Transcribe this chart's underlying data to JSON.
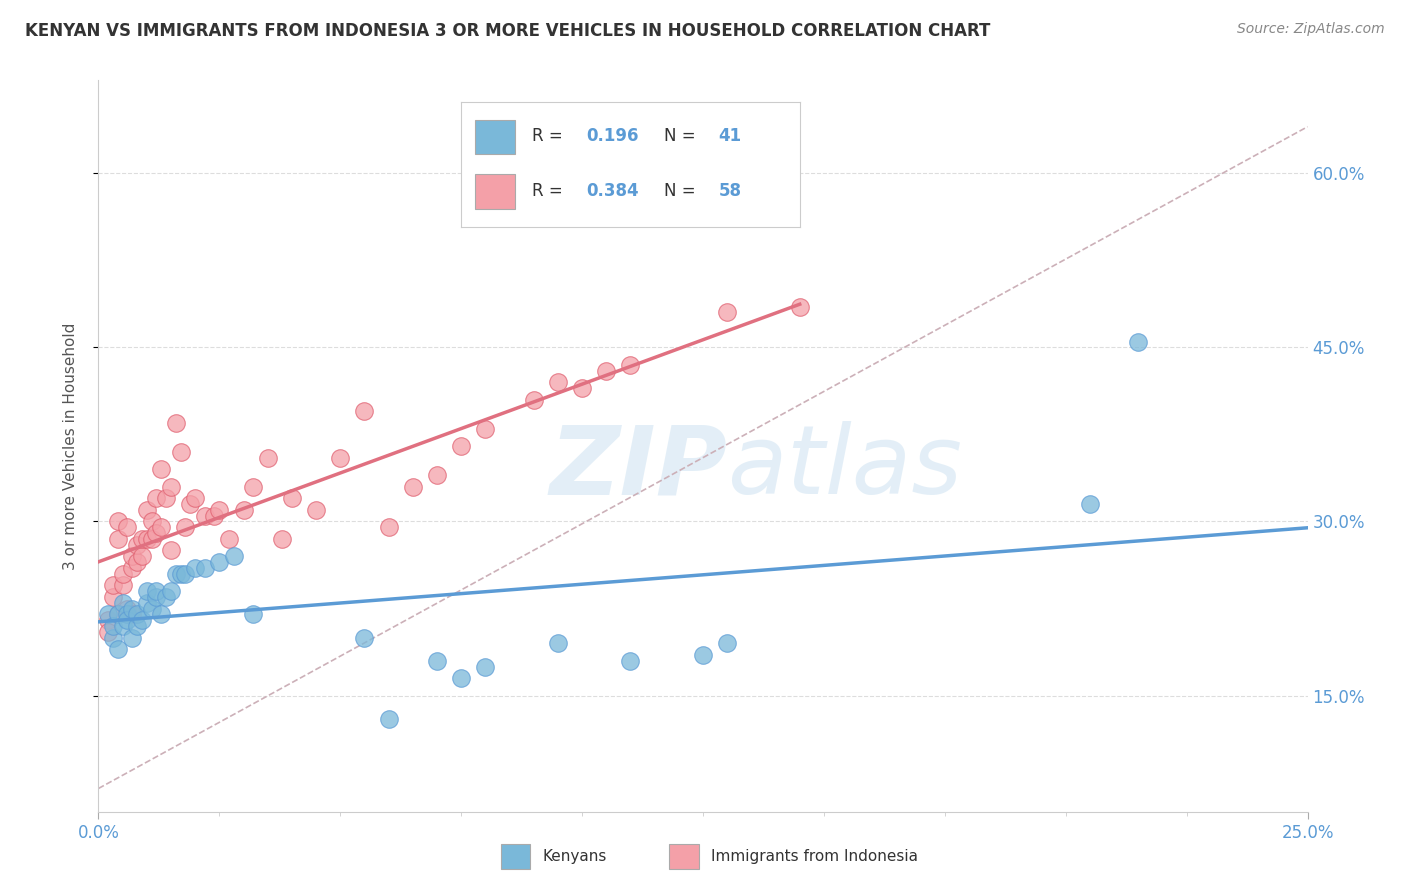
{
  "title": "KENYAN VS IMMIGRANTS FROM INDONESIA 3 OR MORE VEHICLES IN HOUSEHOLD CORRELATION CHART",
  "source": "Source: ZipAtlas.com",
  "ylabel": "3 or more Vehicles in Household",
  "yticks": [
    "15.0%",
    "30.0%",
    "45.0%",
    "60.0%"
  ],
  "ytick_vals": [
    0.15,
    0.3,
    0.45,
    0.6
  ],
  "xlim": [
    0.0,
    0.25
  ],
  "ylim": [
    0.05,
    0.68
  ],
  "kenyan_R": 0.196,
  "kenyan_N": 41,
  "indonesia_R": 0.384,
  "indonesia_N": 58,
  "kenyan_color": "#7ab8d9",
  "kenya_edge": "#5b9bd5",
  "indonesia_color": "#f4a0a8",
  "indonesia_edge": "#e06070",
  "kenyan_scatter_x": [
    0.002,
    0.003,
    0.003,
    0.004,
    0.004,
    0.005,
    0.005,
    0.006,
    0.006,
    0.007,
    0.007,
    0.008,
    0.008,
    0.009,
    0.01,
    0.01,
    0.011,
    0.012,
    0.012,
    0.013,
    0.014,
    0.015,
    0.016,
    0.017,
    0.018,
    0.02,
    0.022,
    0.025,
    0.028,
    0.032,
    0.055,
    0.06,
    0.07,
    0.075,
    0.08,
    0.095,
    0.11,
    0.125,
    0.13,
    0.205,
    0.215
  ],
  "kenyan_scatter_y": [
    0.22,
    0.2,
    0.21,
    0.19,
    0.22,
    0.21,
    0.23,
    0.22,
    0.215,
    0.2,
    0.225,
    0.21,
    0.22,
    0.215,
    0.23,
    0.24,
    0.225,
    0.235,
    0.24,
    0.22,
    0.235,
    0.24,
    0.255,
    0.255,
    0.255,
    0.26,
    0.26,
    0.265,
    0.27,
    0.22,
    0.2,
    0.13,
    0.18,
    0.165,
    0.175,
    0.195,
    0.18,
    0.185,
    0.195,
    0.315,
    0.455
  ],
  "indonesia_scatter_x": [
    0.002,
    0.002,
    0.003,
    0.003,
    0.004,
    0.004,
    0.004,
    0.005,
    0.005,
    0.006,
    0.006,
    0.007,
    0.007,
    0.007,
    0.008,
    0.008,
    0.009,
    0.009,
    0.01,
    0.01,
    0.011,
    0.011,
    0.012,
    0.012,
    0.013,
    0.013,
    0.014,
    0.015,
    0.015,
    0.016,
    0.017,
    0.018,
    0.019,
    0.02,
    0.022,
    0.024,
    0.025,
    0.027,
    0.03,
    0.032,
    0.035,
    0.038,
    0.04,
    0.045,
    0.05,
    0.055,
    0.06,
    0.065,
    0.07,
    0.075,
    0.08,
    0.09,
    0.095,
    0.1,
    0.105,
    0.11,
    0.13,
    0.145
  ],
  "indonesia_scatter_y": [
    0.215,
    0.205,
    0.235,
    0.245,
    0.22,
    0.3,
    0.285,
    0.245,
    0.255,
    0.225,
    0.295,
    0.26,
    0.27,
    0.22,
    0.265,
    0.28,
    0.27,
    0.285,
    0.285,
    0.31,
    0.285,
    0.3,
    0.32,
    0.29,
    0.295,
    0.345,
    0.32,
    0.275,
    0.33,
    0.385,
    0.36,
    0.295,
    0.315,
    0.32,
    0.305,
    0.305,
    0.31,
    0.285,
    0.31,
    0.33,
    0.355,
    0.285,
    0.32,
    0.31,
    0.355,
    0.395,
    0.295,
    0.33,
    0.34,
    0.365,
    0.38,
    0.405,
    0.42,
    0.415,
    0.43,
    0.435,
    0.48,
    0.485
  ],
  "kenyan_trend": [
    0.225,
    0.325
  ],
  "indonesia_trend_x": [
    0.0,
    0.13
  ],
  "indonesia_trend_y": [
    0.195,
    0.455
  ],
  "ref_line_x": [
    0.0,
    0.25
  ],
  "ref_line_y": [
    0.07,
    0.64
  ],
  "watermark_zip": "ZIP",
  "watermark_atlas": "atlas",
  "background_color": "#ffffff",
  "grid_color": "#dddddd"
}
